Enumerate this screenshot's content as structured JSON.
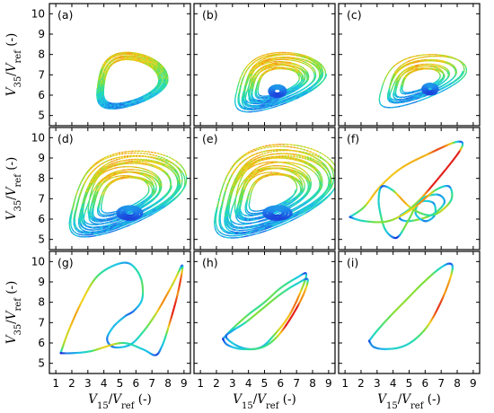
{
  "chart_data": {
    "type": "line",
    "layout": "3x3 grid of phase-space panels, shared axes",
    "xlabel": {
      "var": "V",
      "sub": "15",
      "sep": "/",
      "ref": "V",
      "refsub": "ref",
      "unit": " (-)"
    },
    "ylabel": {
      "var": "V",
      "sub": "35",
      "sep": "/",
      "ref": "V",
      "refsub": "ref",
      "unit": " (-)"
    },
    "xlim": [
      0.6,
      9.4
    ],
    "ylim": [
      4.5,
      10.5
    ],
    "xticks": [
      "1",
      "2",
      "3",
      "4",
      "5",
      "6",
      "7",
      "8",
      "9"
    ],
    "yticks": [
      "5",
      "6",
      "7",
      "8",
      "9",
      "10"
    ],
    "colormap": [
      "#1a2bd6",
      "#1f78ea",
      "#1fc7e8",
      "#27dfa6",
      "#7ee03a",
      "#f2d21c",
      "#f28a14",
      "#e4201a"
    ],
    "panels": [
      {
        "label": "(a)",
        "kind": "torus",
        "cx": 5.4,
        "cy": 6.5,
        "rx": 2.2,
        "ry": 1.4,
        "tilt": 0.15,
        "loops": 16,
        "spread": 0.45,
        "steps": 1500,
        "dashed": true
      },
      {
        "label": "(b)",
        "kind": "chaos",
        "cx": 5.6,
        "cy": 6.5,
        "rx": 2.6,
        "ry": 1.3,
        "tilt": 0.28,
        "loops": 18,
        "spread": 0.85,
        "steps": 2000,
        "dashed": true,
        "core": [
          5.8,
          6.2,
          0.55,
          0.3
        ]
      },
      {
        "label": "(c)",
        "kind": "chaos",
        "cx": 5.5,
        "cy": 6.6,
        "rx": 2.5,
        "ry": 1.1,
        "tilt": 0.35,
        "loops": 10,
        "spread": 0.9,
        "steps": 1400,
        "dashed": true,
        "core": [
          6.3,
          6.3,
          0.5,
          0.28
        ]
      },
      {
        "label": "(d)",
        "kind": "chaos",
        "cx": 5.0,
        "cy": 7.0,
        "rx": 3.3,
        "ry": 1.8,
        "tilt": 0.33,
        "loops": 20,
        "spread": 0.95,
        "steps": 2400,
        "dashed": true,
        "core": [
          5.6,
          6.3,
          0.8,
          0.35
        ]
      },
      {
        "label": "(e)",
        "kind": "chaos",
        "cx": 5.2,
        "cy": 7.1,
        "rx": 3.5,
        "ry": 2.0,
        "tilt": 0.3,
        "loops": 22,
        "spread": 1.0,
        "steps": 2600,
        "dashed": true,
        "core": [
          5.8,
          6.3,
          0.9,
          0.35
        ]
      },
      {
        "label": "(f)",
        "kind": "orbit",
        "pts": [
          [
            1.3,
            6.1
          ],
          [
            2.2,
            6.6
          ],
          [
            3.2,
            7.6
          ],
          [
            4.5,
            8.5
          ],
          [
            6.2,
            9.2
          ],
          [
            8.0,
            9.8
          ],
          [
            8.2,
            9.4
          ],
          [
            6.4,
            7.6
          ],
          [
            5.2,
            6.6
          ],
          [
            4.4,
            6.1
          ],
          [
            5.0,
            5.9
          ],
          [
            6.4,
            6.2
          ],
          [
            7.2,
            6.8
          ],
          [
            6.8,
            7.2
          ],
          [
            5.8,
            7.0
          ],
          [
            5.4,
            6.3
          ],
          [
            6.0,
            5.9
          ],
          [
            6.6,
            6.2
          ],
          [
            6.5,
            6.8
          ],
          [
            5.6,
            6.8
          ],
          [
            5.0,
            6.0
          ],
          [
            4.4,
            5.2
          ],
          [
            4.0,
            5.1
          ],
          [
            3.5,
            5.5
          ],
          [
            3.2,
            6.3
          ],
          [
            3.1,
            7.0
          ],
          [
            3.3,
            7.6
          ],
          [
            4.0,
            7.4
          ],
          [
            5.2,
            6.5
          ],
          [
            6.5,
            6.2
          ],
          [
            7.6,
            6.9
          ],
          [
            7.5,
            7.6
          ],
          [
            6.6,
            7.4
          ],
          [
            5.2,
            6.5
          ],
          [
            3.7,
            5.9
          ],
          [
            2.2,
            5.9
          ],
          [
            1.3,
            6.1
          ]
        ]
      },
      {
        "label": "(g)",
        "kind": "orbit",
        "pts": [
          [
            1.3,
            5.5
          ],
          [
            1.8,
            6.6
          ],
          [
            2.6,
            8.0
          ],
          [
            3.5,
            9.2
          ],
          [
            4.6,
            9.8
          ],
          [
            5.6,
            9.9
          ],
          [
            6.3,
            9.2
          ],
          [
            6.4,
            8.2
          ],
          [
            5.9,
            7.6
          ],
          [
            5.3,
            7.3
          ],
          [
            4.6,
            6.8
          ],
          [
            4.2,
            6.2
          ],
          [
            4.6,
            5.8
          ],
          [
            5.6,
            5.9
          ],
          [
            6.4,
            6.5
          ],
          [
            7.3,
            7.5
          ],
          [
            8.3,
            8.9
          ],
          [
            8.9,
            9.8
          ],
          [
            8.6,
            8.4
          ],
          [
            8.0,
            6.7
          ],
          [
            7.6,
            5.8
          ],
          [
            7.2,
            5.4
          ],
          [
            6.4,
            5.7
          ],
          [
            5.1,
            6.0
          ],
          [
            3.2,
            5.6
          ],
          [
            2.0,
            5.5
          ],
          [
            1.3,
            5.5
          ]
        ]
      },
      {
        "label": "(h)",
        "kind": "orbit",
        "pts": [
          [
            2.4,
            6.2
          ],
          [
            3.0,
            6.7
          ],
          [
            4.0,
            7.4
          ],
          [
            5.0,
            8.0
          ],
          [
            6.0,
            8.7
          ],
          [
            7.0,
            9.2
          ],
          [
            7.6,
            9.4
          ],
          [
            7.3,
            8.6
          ],
          [
            6.5,
            7.3
          ],
          [
            5.5,
            6.3
          ],
          [
            4.8,
            5.8
          ],
          [
            4.0,
            5.7
          ],
          [
            3.2,
            5.9
          ],
          [
            2.6,
            6.3
          ],
          [
            3.0,
            6.6
          ],
          [
            3.8,
            7.0
          ],
          [
            4.9,
            7.7
          ],
          [
            6.0,
            8.4
          ],
          [
            7.0,
            8.9
          ],
          [
            7.7,
            9.1
          ],
          [
            7.2,
            8.0
          ],
          [
            6.0,
            6.5
          ],
          [
            4.9,
            5.8
          ],
          [
            3.6,
            5.7
          ],
          [
            2.7,
            5.9
          ],
          [
            2.4,
            6.2
          ]
        ]
      },
      {
        "label": "(i)",
        "kind": "orbit",
        "pts": [
          [
            2.5,
            6.1
          ],
          [
            3.0,
            6.6
          ],
          [
            3.8,
            7.3
          ],
          [
            4.8,
            8.1
          ],
          [
            5.8,
            8.9
          ],
          [
            6.8,
            9.6
          ],
          [
            7.5,
            9.9
          ],
          [
            7.7,
            9.6
          ],
          [
            7.2,
            8.4
          ],
          [
            6.3,
            7.0
          ],
          [
            5.4,
            6.2
          ],
          [
            4.5,
            5.8
          ],
          [
            3.5,
            5.7
          ],
          [
            2.8,
            5.8
          ],
          [
            2.5,
            6.1
          ]
        ]
      }
    ]
  }
}
